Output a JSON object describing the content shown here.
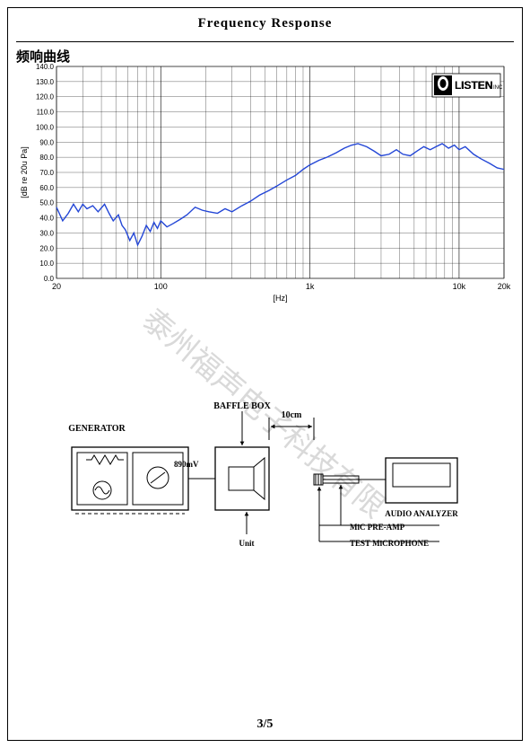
{
  "page": {
    "title": "Frequency    Response",
    "page_number": "3/5",
    "watermark": "泰州福声电子科技有限"
  },
  "chart": {
    "title_cn": "频响曲线",
    "type": "line",
    "x_axis": {
      "label": "[Hz]",
      "scale": "log",
      "min": 20,
      "max": 20000,
      "major_ticks": [
        20,
        100,
        1000,
        10000,
        20000
      ],
      "major_labels": [
        "20",
        "100",
        "1k",
        "10k",
        "20k"
      ],
      "minor_ticks": [
        30,
        40,
        50,
        60,
        70,
        80,
        90,
        200,
        300,
        400,
        500,
        600,
        700,
        800,
        900,
        2000,
        3000,
        4000,
        5000,
        6000,
        7000,
        8000,
        9000
      ],
      "label_fontsize": 9
    },
    "y_axis": {
      "label": "[dB re 20u Pa]",
      "scale": "linear",
      "min": 0,
      "max": 140,
      "tick_step": 10,
      "ticks": [
        0,
        10,
        20,
        30,
        40,
        50,
        60,
        70,
        80,
        90,
        100,
        110,
        120,
        130,
        140
      ],
      "labels": [
        "0.0",
        "10.0",
        "20.0",
        "30.0",
        "40.0",
        "50.0",
        "60.0",
        "70.0",
        "80.0",
        "90.0",
        "100.0",
        "110.0",
        "120.0",
        "130.0",
        "140.0"
      ],
      "label_fontsize": 9
    },
    "series": {
      "color": "#2346d6",
      "line_width": 1.4,
      "data": [
        [
          20,
          47
        ],
        [
          22,
          38
        ],
        [
          24,
          43
        ],
        [
          26,
          49
        ],
        [
          28,
          44
        ],
        [
          30,
          49
        ],
        [
          32,
          46
        ],
        [
          35,
          48
        ],
        [
          38,
          44
        ],
        [
          42,
          49
        ],
        [
          45,
          43
        ],
        [
          48,
          38
        ],
        [
          52,
          42
        ],
        [
          55,
          35
        ],
        [
          58,
          32
        ],
        [
          62,
          25
        ],
        [
          66,
          30
        ],
        [
          70,
          22
        ],
        [
          75,
          28
        ],
        [
          80,
          35
        ],
        [
          85,
          31
        ],
        [
          90,
          37
        ],
        [
          95,
          33
        ],
        [
          100,
          38
        ],
        [
          110,
          34
        ],
        [
          120,
          36
        ],
        [
          135,
          39
        ],
        [
          150,
          42
        ],
        [
          170,
          47
        ],
        [
          190,
          45
        ],
        [
          210,
          44
        ],
        [
          240,
          43
        ],
        [
          270,
          46
        ],
        [
          300,
          44
        ],
        [
          350,
          48
        ],
        [
          400,
          51
        ],
        [
          460,
          55
        ],
        [
          530,
          58
        ],
        [
          600,
          61
        ],
        [
          700,
          65
        ],
        [
          800,
          68
        ],
        [
          900,
          72
        ],
        [
          1000,
          75
        ],
        [
          1150,
          78
        ],
        [
          1300,
          80
        ],
        [
          1500,
          83
        ],
        [
          1700,
          86
        ],
        [
          1900,
          88
        ],
        [
          2100,
          89
        ],
        [
          2400,
          87
        ],
        [
          2700,
          84
        ],
        [
          3000,
          81
        ],
        [
          3400,
          82
        ],
        [
          3800,
          85
        ],
        [
          4200,
          82
        ],
        [
          4700,
          81
        ],
        [
          5200,
          84
        ],
        [
          5800,
          87
        ],
        [
          6400,
          85
        ],
        [
          7000,
          87
        ],
        [
          7700,
          89
        ],
        [
          8500,
          86
        ],
        [
          9300,
          88
        ],
        [
          10000,
          85
        ],
        [
          11000,
          87
        ],
        [
          12500,
          82
        ],
        [
          14000,
          79
        ],
        [
          16000,
          76
        ],
        [
          18000,
          73
        ],
        [
          20000,
          72
        ]
      ]
    },
    "logo": {
      "text": "LISTEN",
      "subtext": "INC",
      "background": "#ffffff",
      "border_color": "#000000"
    },
    "grid_color": "#000000",
    "grid_width": 0.3,
    "background": "#ffffff",
    "axis_font": "Arial"
  },
  "diagram": {
    "type": "schematic",
    "labels": {
      "generator": "GENERATOR",
      "baffle_box": "BAFFLE BOX",
      "distance": "10cm",
      "voltage": "890mV",
      "unit": "Unit",
      "audio_analyzer": "AUDIO ANALYZER",
      "mic_preamp": "MiC PRE-AMP",
      "test_mic": "TEST MiCROPHONE"
    },
    "font_family": "Times New Roman",
    "font_size_label": 10,
    "line_color": "#000000",
    "line_width": 1
  }
}
